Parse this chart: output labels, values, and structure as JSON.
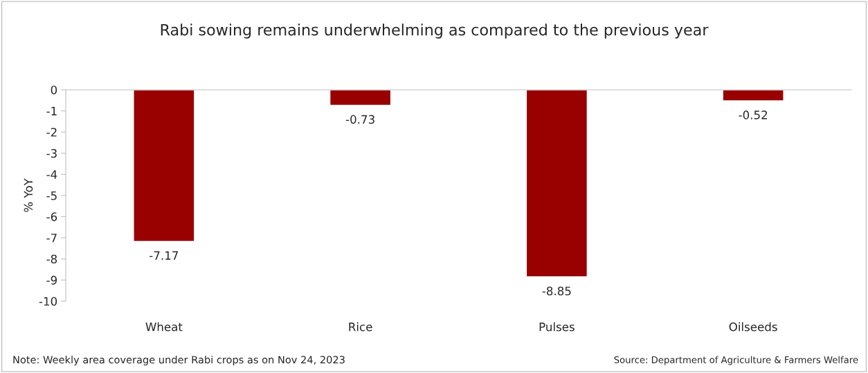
{
  "chart_data": {
    "type": "bar",
    "title": "Rabi sowing remains underwhelming as compared to the previous year",
    "ylabel": "% YoY",
    "categories": [
      "Wheat",
      "Rice",
      "Pulses",
      "Oilseeds"
    ],
    "values": [
      -7.17,
      -0.73,
      -8.85,
      -0.52
    ],
    "color": "#990000",
    "ylim": [
      -10,
      0
    ],
    "yticks": [
      0,
      -1,
      -2,
      -3,
      -4,
      -5,
      -6,
      -7,
      -8,
      -9,
      -10
    ],
    "data_labels": true,
    "grid": false,
    "legend": false,
    "annotations": [
      "Note: Weekly area coverage under Rabi crops as on Nov 24, 2023",
      "Source: Department of Agriculture & Farmers Welfare"
    ]
  }
}
